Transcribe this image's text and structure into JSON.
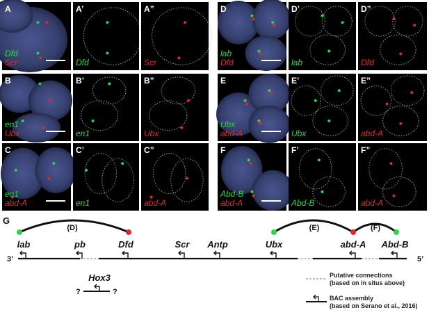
{
  "colors": {
    "green": "#2fd24a",
    "red": "#e02a2a",
    "nucleus": "#3f4a7e",
    "black": "#000000",
    "outline": "#bdbdbd"
  },
  "panels": [
    {
      "letter": "A",
      "primes": [
        "",
        "’",
        "”"
      ],
      "gene_top": "Dfd",
      "gene_bottom": "Scr",
      "top_color": "green",
      "bottom_color": "red"
    },
    {
      "letter": "B",
      "primes": [
        "",
        "’",
        "”"
      ],
      "gene_top": "en1",
      "gene_bottom": "Ubx",
      "top_color": "green",
      "bottom_color": "red"
    },
    {
      "letter": "C",
      "primes": [
        "",
        "’",
        "”"
      ],
      "gene_top": "en1",
      "gene_bottom": "abd-A",
      "top_color": "green",
      "bottom_color": "red"
    },
    {
      "letter": "D",
      "primes": [
        "",
        "’",
        "”"
      ],
      "gene_top": "lab",
      "gene_bottom": "Dfd",
      "top_color": "green",
      "bottom_color": "red"
    },
    {
      "letter": "E",
      "primes": [
        "",
        "’",
        "”"
      ],
      "gene_top": "Ubx",
      "gene_bottom": "abd-A",
      "top_color": "green",
      "bottom_color": "red"
    },
    {
      "letter": "F",
      "primes": [
        "",
        "’",
        "”"
      ],
      "gene_top": "Abd-B",
      "gene_bottom": "abd-A",
      "top_color": "green",
      "bottom_color": "red"
    }
  ],
  "panel_g": {
    "label": "G",
    "end_left": "3’",
    "end_right": "5’",
    "genes": [
      "lab",
      "pb",
      "Dfd",
      "Scr",
      "Antp",
      "Ubx",
      "abd-A",
      "Abd-B"
    ],
    "arcs": [
      "(D)",
      "(E)",
      "(F)"
    ],
    "hox3": "Hox3",
    "question": "?",
    "legend_putative": [
      "Putative connections",
      "(based on in situs above)"
    ],
    "legend_bac": [
      "BAC assembly",
      "(based on Serano et al., 2016)"
    ]
  }
}
